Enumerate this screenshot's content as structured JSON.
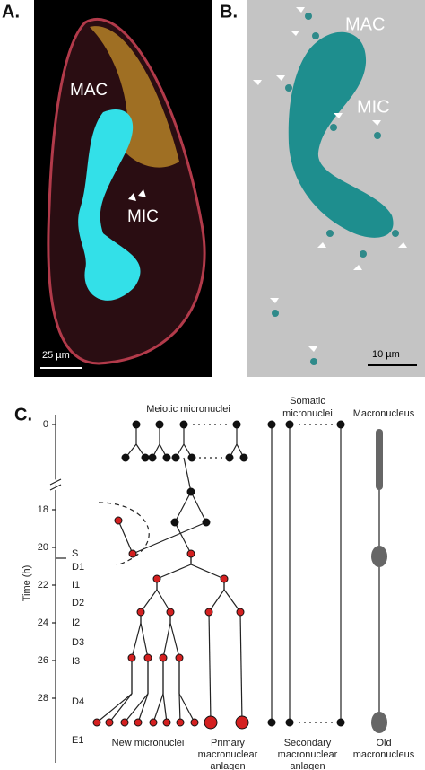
{
  "panel_a": {
    "label": "A.",
    "mac": "MAC",
    "mic": "MIC",
    "scale": "25 µm"
  },
  "panel_b": {
    "label": "B.",
    "mac": "MAC",
    "mic": "MIC",
    "scale": "10 µm"
  },
  "panel_c": {
    "label": "C.",
    "headers": [
      [
        "Meiotic micronuclei"
      ],
      [
        "Somatic",
        "micronuclei"
      ],
      [
        "Macronucleus"
      ]
    ],
    "axis_title": "Time (h)",
    "time_ticks": [
      "0",
      "18",
      "20",
      "22",
      "24",
      "26",
      "28"
    ],
    "stages": [
      "S",
      "D1",
      "I1",
      "D2",
      "I2",
      "D3",
      "I3",
      "D4",
      "E1"
    ],
    "footers": [
      [
        "New micronuclei"
      ],
      [
        "Primary",
        "macronuclear",
        "anlagen"
      ],
      [
        "Secondary",
        "macronuclear",
        "anlagen"
      ],
      [
        "Old",
        "macronucleus"
      ]
    ]
  }
}
